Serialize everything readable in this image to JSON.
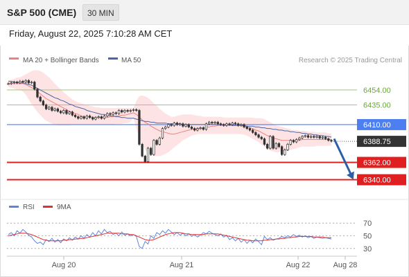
{
  "header": {
    "symbol": "S&P 500 (CME)",
    "interval": "30 MIN",
    "datetime": "Friday, August 22, 2025 7:10:28 AM CET"
  },
  "legend": {
    "ma20_bb": "MA 20 + Bollinger Bands",
    "ma50": "MA 50",
    "credit": "Research © 2025 Trading Central",
    "rsi": "RSI",
    "rsi_ma": "9MA"
  },
  "colors": {
    "ma20": "#f08080",
    "ma50": "#4a64a8",
    "bollinger_fill": "#fde3e3",
    "resistance_green": "#9acd6a",
    "pivot_blue": "#4d7ff0",
    "support_red": "#e02020",
    "candle": "#333333",
    "forecast_arrow": "#2b5fa8",
    "last_price_bg": "#333333",
    "rsi_line": "#5b86e0",
    "rsi_ma_line": "#e03030"
  },
  "chart_data": [
    {
      "type": "candlestick",
      "title": "S&P 500 (CME) 30 MIN",
      "y_unit": "index points",
      "ylim": [
        6322,
        6468
      ],
      "x_tick_labels": [
        "Aug 20",
        "Aug 21",
        "Aug 22",
        "Aug 28"
      ],
      "last_price": 6388.75,
      "levels": [
        {
          "value": 6454.0,
          "label": "6454.00",
          "kind": "resistance"
        },
        {
          "value": 6435.0,
          "label": "6435.00",
          "kind": "resistance"
        },
        {
          "value": 6410.0,
          "label": "6410.00",
          "kind": "pivot"
        },
        {
          "value": 6362.0,
          "label": "6362.00",
          "kind": "support"
        },
        {
          "value": 6340.0,
          "label": "6340.00",
          "kind": "support"
        }
      ],
      "forecast": {
        "from": 6392,
        "to": 6340
      },
      "close": [
        6462,
        6463,
        6464,
        6463,
        6465,
        6464,
        6466,
        6463,
        6464,
        6455,
        6445,
        6440,
        6435,
        6430,
        6432,
        6428,
        6430,
        6427,
        6425,
        6428,
        6424,
        6426,
        6422,
        6420,
        6418,
        6420,
        6418,
        6421,
        6419,
        6417,
        6419,
        6420,
        6418,
        6421,
        6424,
        6423,
        6425,
        6424,
        6428,
        6426,
        6428,
        6427,
        6428,
        6429,
        6428,
        6385,
        6370,
        6363,
        6380,
        6372,
        6390,
        6385,
        6393,
        6405,
        6407,
        6410,
        6409,
        6412,
        6410,
        6411,
        6408,
        6410,
        6407,
        6405,
        6403,
        6405,
        6406,
        6404,
        6411,
        6413,
        6412,
        6413,
        6411,
        6410,
        6409,
        6411,
        6410,
        6412,
        6411,
        6409,
        6410,
        6407,
        6405,
        6403,
        6400,
        6397,
        6394,
        6392,
        6385,
        6380,
        6395,
        6380,
        6386,
        6382,
        6372,
        6378,
        6385,
        6390,
        6388,
        6391,
        6393,
        6395,
        6396,
        6394,
        6395,
        6394,
        6395,
        6393,
        6394,
        6392,
        6390,
        6389
      ],
      "ma20": [
        6462,
        6462,
        6462,
        6462,
        6462,
        6462,
        6461,
        6459,
        6457,
        6455,
        6452,
        6449,
        6446,
        6443,
        6441,
        6439,
        6437,
        6435,
        6433,
        6431,
        6429,
        6427,
        6426,
        6424,
        6423,
        6421,
        6420,
        6420,
        6420,
        6419,
        6419,
        6419,
        6419,
        6419,
        6419,
        6420,
        6420,
        6421,
        6421,
        6422,
        6422,
        6423,
        6424,
        6425,
        6423,
        6420,
        6416,
        6413,
        6411,
        6408,
        6406,
        6404,
        6402,
        6401,
        6400,
        6399,
        6398,
        6398,
        6399,
        6400,
        6401,
        6402,
        6403,
        6404,
        6404,
        6405,
        6405,
        6406,
        6407,
        6407,
        6408,
        6408,
        6409,
        6409,
        6409,
        6409,
        6409,
        6409,
        6409,
        6409,
        6409,
        6408,
        6407,
        6406,
        6405,
        6403,
        6402,
        6400,
        6398,
        6396,
        6395,
        6393,
        6392,
        6391,
        6390,
        6390,
        6390,
        6390,
        6390,
        6390,
        6390,
        6391,
        6391,
        6391,
        6391,
        6391,
        6391,
        6391,
        6391,
        6391,
        6391,
        6391
      ],
      "ma50": [
        6465,
        6465,
        6464,
        6464,
        6463,
        6463,
        6462,
        6461,
        6460,
        6458,
        6456,
        6454,
        6452,
        6450,
        6448,
        6446,
        6444,
        6443,
        6441,
        6440,
        6438,
        6436,
        6435,
        6433,
        6432,
        6431,
        6430,
        6428,
        6427,
        6426,
        6425,
        6424,
        6423,
        6423,
        6422,
        6421,
        6421,
        6420,
        6420,
        6419,
        6419,
        6418,
        6418,
        6418,
        6417,
        6416,
        6415,
        6414,
        6414,
        6413,
        6413,
        6412,
        6412,
        6412,
        6412,
        6411,
        6411,
        6411,
        6411,
        6411,
        6410,
        6410,
        6410,
        6410,
        6410,
        6410,
        6410,
        6410,
        6410,
        6410,
        6410,
        6410,
        6410,
        6410,
        6410,
        6410,
        6410,
        6409,
        6409,
        6409,
        6409,
        6409,
        6408,
        6408,
        6408,
        6407,
        6407,
        6406,
        6406,
        6405,
        6405,
        6404,
        6404,
        6403,
        6403,
        6402,
        6402,
        6401,
        6401,
        6400,
        6400,
        6399,
        6399,
        6398,
        6398,
        6397,
        6397,
        6396,
        6396,
        6395,
        6395,
        6394
      ],
      "bb_upper": [
        6466,
        6467,
        6468,
        6470,
        6470,
        6472,
        6474,
        6476,
        6478,
        6479,
        6479,
        6478,
        6476,
        6473,
        6470,
        6466,
        6462,
        6458,
        6455,
        6451,
        6448,
        6445,
        6442,
        6440,
        6438,
        6437,
        6436,
        6435,
        6434,
        6433,
        6432,
        6432,
        6431,
        6431,
        6431,
        6431,
        6431,
        6431,
        6431,
        6431,
        6431,
        6431,
        6431,
        6431,
        6440,
        6446,
        6447,
        6446,
        6444,
        6441,
        6437,
        6434,
        6430,
        6427,
        6424,
        6422,
        6420,
        6420,
        6421,
        6422,
        6423,
        6423,
        6423,
        6423,
        6422,
        6421,
        6421,
        6420,
        6420,
        6420,
        6420,
        6420,
        6420,
        6420,
        6419,
        6419,
        6419,
        6419,
        6419,
        6419,
        6419,
        6419,
        6419,
        6419,
        6419,
        6418,
        6418,
        6418,
        6417,
        6415,
        6413,
        6411,
        6409,
        6408,
        6407,
        6406,
        6405,
        6404,
        6403,
        6403,
        6402,
        6402,
        6402,
        6401,
        6401,
        6401,
        6400,
        6400,
        6400,
        6400,
        6399,
        6399
      ],
      "bb_lower": [
        6458,
        6457,
        6456,
        6454,
        6454,
        6452,
        6448,
        6442,
        6436,
        6431,
        6426,
        6422,
        6418,
        6415,
        6413,
        6411,
        6410,
        6409,
        6409,
        6409,
        6409,
        6409,
        6410,
        6410,
        6410,
        6410,
        6410,
        6410,
        6410,
        6410,
        6410,
        6410,
        6410,
        6410,
        6410,
        6410,
        6410,
        6411,
        6411,
        6411,
        6412,
        6412,
        6414,
        6418,
        6405,
        6394,
        6385,
        6378,
        6374,
        6372,
        6370,
        6370,
        6370,
        6371,
        6373,
        6375,
        6378,
        6381,
        6384,
        6387,
        6390,
        6392,
        6394,
        6396,
        6397,
        6398,
        6398,
        6398,
        6398,
        6398,
        6398,
        6398,
        6398,
        6398,
        6398,
        6398,
        6398,
        6398,
        6398,
        6398,
        6398,
        6397,
        6396,
        6394,
        6392,
        6390,
        6388,
        6385,
        6382,
        6379,
        6377,
        6376,
        6375,
        6375,
        6375,
        6376,
        6377,
        6378,
        6379,
        6380,
        6381,
        6382,
        6382,
        6382,
        6382,
        6382,
        6383,
        6383,
        6383,
        6383,
        6383,
        6383
      ]
    },
    {
      "type": "line",
      "title": "RSI",
      "ylim": [
        20,
        80
      ],
      "y_ticks": [
        70,
        50,
        30
      ],
      "series": [
        {
          "name": "RSI",
          "values": [
            52,
            55,
            50,
            58,
            54,
            60,
            56,
            51,
            48,
            42,
            38,
            40,
            36,
            44,
            41,
            46,
            40,
            44,
            39,
            45,
            42,
            47,
            43,
            48,
            45,
            50,
            46,
            52,
            48,
            55,
            50,
            58,
            53,
            60,
            55,
            57,
            52,
            54,
            50,
            56,
            51,
            53,
            50,
            52,
            49,
            33,
            30,
            41,
            37,
            50,
            46,
            55,
            52,
            58,
            54,
            60,
            56,
            52,
            55,
            51,
            54,
            50,
            53,
            49,
            52,
            48,
            51,
            55,
            53,
            57,
            54,
            52,
            50,
            53,
            48,
            51,
            44,
            47,
            42,
            46,
            40,
            44,
            38,
            43,
            39,
            45,
            41,
            36,
            49,
            44,
            47,
            43,
            45,
            46,
            49,
            47,
            50,
            48,
            52,
            49,
            51,
            48,
            50,
            47,
            49,
            46,
            48,
            47,
            46,
            47,
            46,
            45
          ]
        },
        {
          "name": "9MA",
          "values": [
            50,
            51,
            52,
            53,
            54,
            54,
            54,
            53,
            52,
            50,
            48,
            46,
            44,
            43,
            42,
            42,
            42,
            42,
            42,
            43,
            43,
            44,
            44,
            45,
            45,
            46,
            46,
            47,
            48,
            49,
            50,
            51,
            52,
            53,
            54,
            54,
            54,
            54,
            54,
            53,
            53,
            53,
            52,
            52,
            50,
            48,
            46,
            44,
            43,
            43,
            44,
            46,
            48,
            50,
            52,
            53,
            54,
            55,
            55,
            55,
            54,
            53,
            53,
            52,
            52,
            52,
            52,
            52,
            53,
            53,
            53,
            53,
            53,
            52,
            51,
            50,
            49,
            48,
            47,
            46,
            45,
            44,
            43,
            43,
            42,
            42,
            42,
            42,
            43,
            43,
            44,
            44,
            45,
            45,
            46,
            46,
            47,
            47,
            48,
            48,
            49,
            49,
            49,
            49,
            49,
            48,
            48,
            48,
            48,
            47,
            47,
            47
          ]
        }
      ]
    }
  ]
}
